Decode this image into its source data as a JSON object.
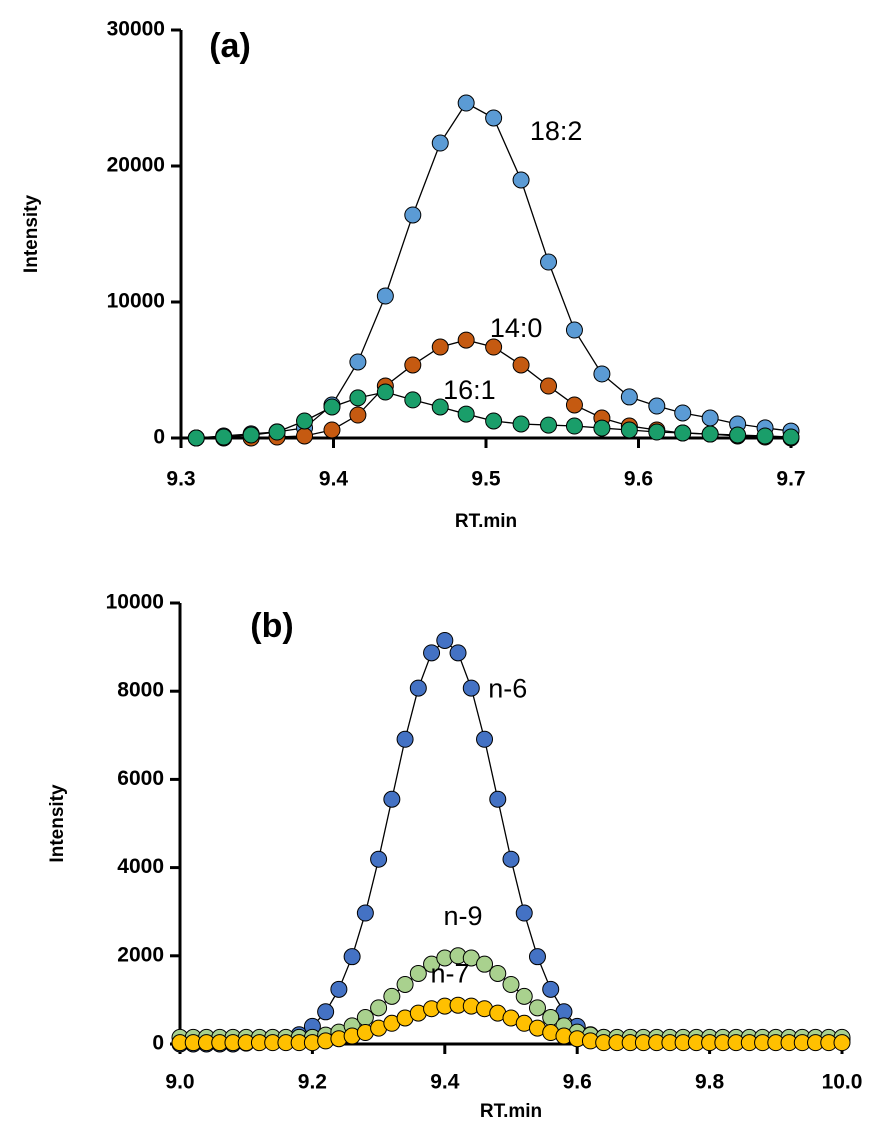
{
  "chart_data": [
    {
      "type": "line",
      "title": "(a)",
      "x_label": "RT.min",
      "y_label": "Intensity",
      "x": [
        9.31,
        9.328,
        9.346,
        9.363,
        9.381,
        9.399,
        9.416,
        9.434,
        9.452,
        9.47,
        9.487,
        9.505,
        9.523,
        9.541,
        9.558,
        9.576,
        9.594,
        9.612,
        9.629,
        9.647,
        9.665,
        9.683,
        9.7
      ],
      "xlim": [
        9.3,
        9.7
      ],
      "xticks": [
        9.3,
        9.4,
        9.5,
        9.6,
        9.7
      ],
      "ylim": [
        0,
        30000
      ],
      "yticks": [
        0,
        10000,
        20000,
        30000
      ],
      "series": [
        {
          "name": "18:2",
          "color": "#5b9bd5",
          "values": [
            0,
            150,
            300,
            450,
            740,
            2430,
            5590,
            10440,
            16400,
            21690,
            24630,
            23530,
            18970,
            12940,
            7940,
            4710,
            3020,
            2350,
            1840,
            1470,
            1030,
            740,
            510
          ]
        },
        {
          "name": "14:0",
          "color": "#c55a11",
          "values": [
            0,
            0,
            0,
            70,
            150,
            590,
            1690,
            3820,
            5370,
            6690,
            7200,
            6690,
            5370,
            3820,
            2430,
            1470,
            880,
            590,
            370,
            290,
            150,
            70,
            0
          ]
        },
        {
          "name": "16:1",
          "color": "#1a9e6a",
          "values": [
            0,
            70,
            220,
            440,
            1250,
            2280,
            2950,
            3380,
            2800,
            2280,
            1760,
            1250,
            1030,
            950,
            880,
            730,
            590,
            440,
            370,
            290,
            220,
            150,
            70
          ]
        }
      ]
    },
    {
      "type": "line",
      "title": "(b)",
      "x_label": "RT.min",
      "y_label": "Intensity",
      "x": [
        9.0,
        9.02,
        9.04,
        9.06,
        9.08,
        9.1,
        9.12,
        9.14,
        9.16,
        9.18,
        9.2,
        9.22,
        9.24,
        9.26,
        9.28,
        9.3,
        9.32,
        9.34,
        9.36,
        9.38,
        9.4,
        9.42,
        9.44,
        9.46,
        9.48,
        9.5,
        9.52,
        9.54,
        9.56,
        9.58,
        9.6,
        9.62,
        9.64,
        9.66,
        9.68,
        9.7,
        9.72,
        9.74,
        9.76,
        9.78,
        9.8,
        9.82,
        9.84,
        9.86,
        9.88,
        9.9,
        9.92,
        9.94,
        9.96,
        9.98,
        10.0
      ],
      "xlim": [
        9.0,
        10.0
      ],
      "xticks": [
        {
          "value": 9.0,
          "label": "9.0"
        },
        9.2,
        9.4,
        9.6,
        9.8,
        {
          "value": 10.0,
          "label": "10.0"
        }
      ],
      "ylim": [
        0,
        10000
      ],
      "yticks": [
        0,
        2000,
        4000,
        6000,
        8000,
        10000
      ],
      "series": [
        {
          "name": "n-6",
          "color": "#4472c4",
          "values": [
            0,
            0,
            0,
            0,
            0,
            20,
            50,
            100,
            100,
            210,
            400,
            730,
            1240,
            1980,
            2970,
            4190,
            5550,
            6910,
            8070,
            8870,
            9150,
            8870,
            8070,
            6910,
            5550,
            4190,
            2970,
            1980,
            1240,
            730,
            400,
            210,
            150,
            100,
            100,
            100,
            100,
            100,
            100,
            100,
            100,
            100,
            100,
            100,
            100,
            100,
            100,
            100,
            100,
            100,
            100
          ]
        },
        {
          "name": "n-9",
          "color": "#a9d18e",
          "values": [
            150,
            150,
            150,
            150,
            150,
            150,
            150,
            150,
            150,
            150,
            150,
            200,
            270,
            410,
            600,
            820,
            1080,
            1350,
            1600,
            1810,
            1950,
            2000,
            1950,
            1810,
            1600,
            1350,
            1080,
            820,
            600,
            410,
            270,
            200,
            150,
            150,
            150,
            150,
            150,
            150,
            150,
            150,
            150,
            150,
            150,
            150,
            150,
            150,
            150,
            150,
            150,
            150,
            150
          ]
        },
        {
          "name": "n-7",
          "color": "#ffc000",
          "values": [
            30,
            30,
            30,
            30,
            30,
            30,
            30,
            30,
            30,
            30,
            30,
            70,
            120,
            180,
            260,
            360,
            470,
            590,
            700,
            800,
            860,
            880,
            860,
            800,
            700,
            590,
            470,
            360,
            260,
            180,
            120,
            70,
            30,
            30,
            30,
            30,
            30,
            30,
            30,
            30,
            30,
            30,
            30,
            30,
            30,
            30,
            30,
            30,
            30,
            30,
            30
          ]
        }
      ]
    }
  ]
}
